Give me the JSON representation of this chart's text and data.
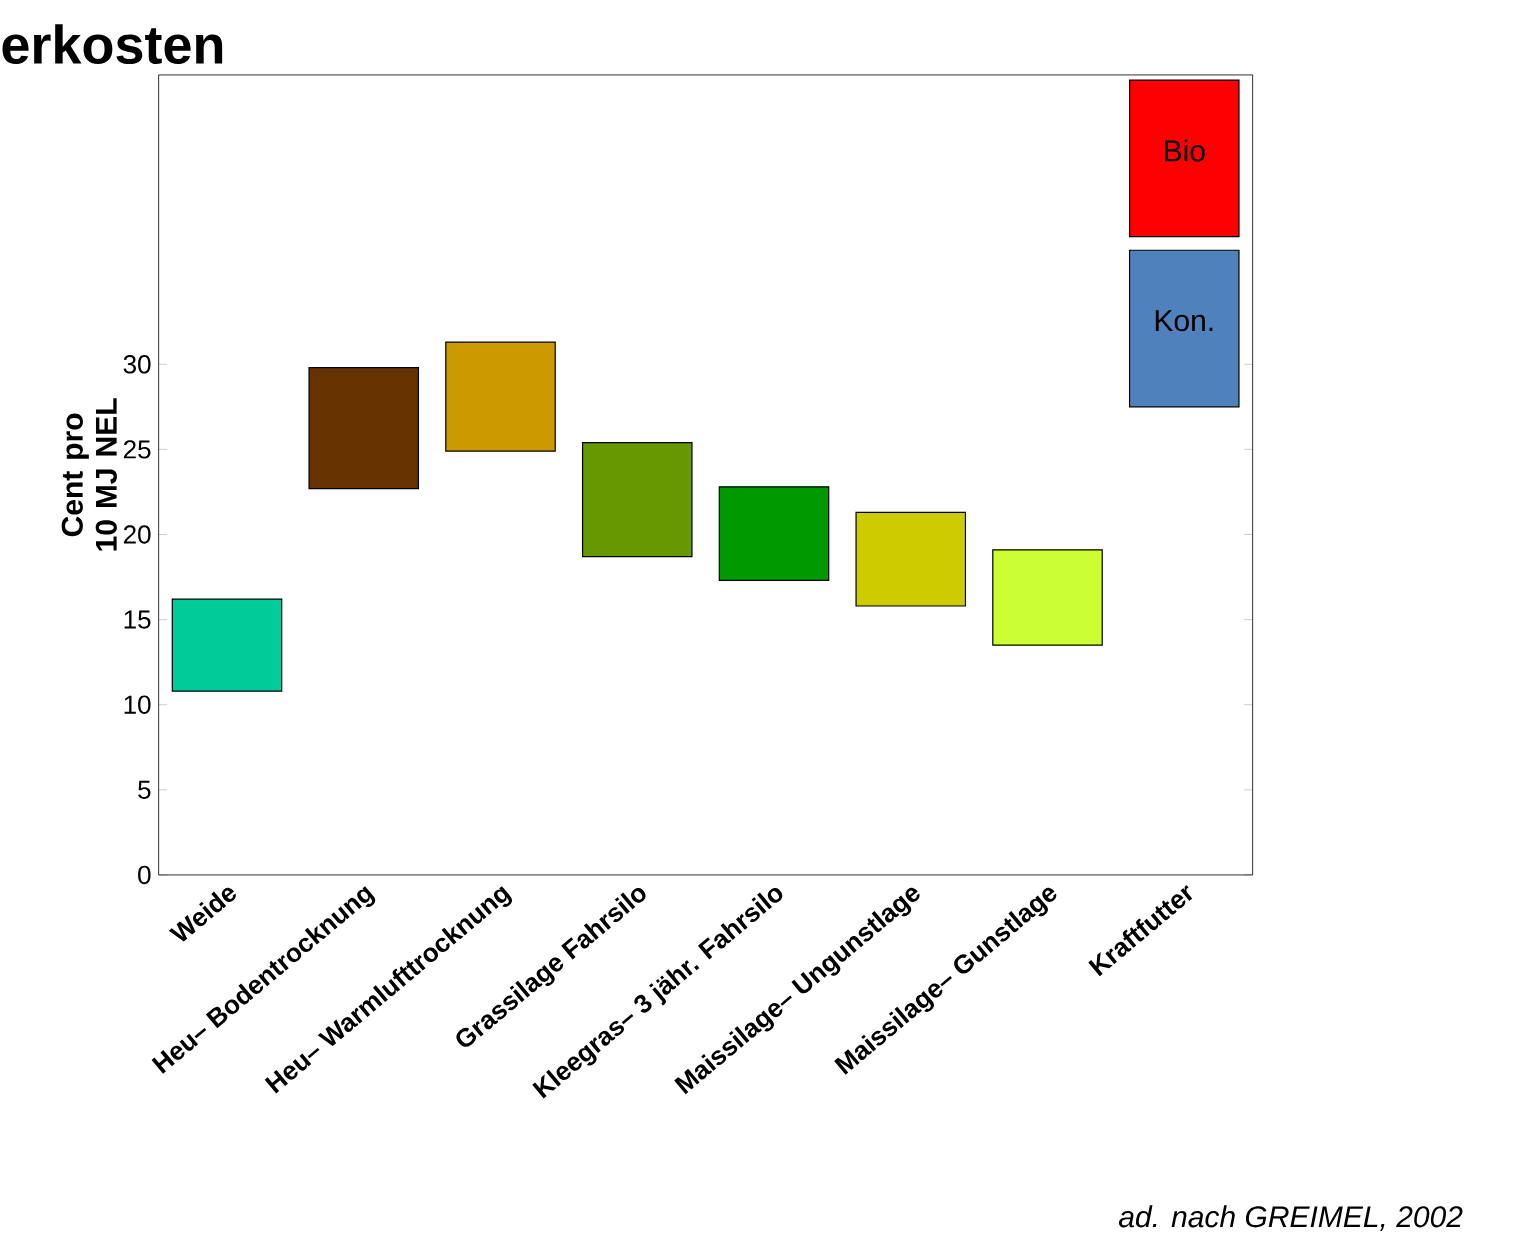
{
  "chart_data": {
    "type": "bar",
    "title": "erkosten",
    "ylabel": "Cent pro 10 MJ NEL",
    "categories": [
      "Weide",
      "Heu– Bodentrocknung",
      "Heu– Warmlufttrocknung",
      "Grassilage Fahrsilo",
      "Kleegras– 3 jähr. Fahrsilo",
      "Maissilage– Ungunstlage",
      "Maissilage– Gunstlage",
      "Kraftfutter"
    ],
    "series": [
      {
        "colors": [
          "#00cc99",
          "#663300",
          "#cc9900",
          "#669900",
          "#009900",
          "#cccc00",
          "#ccff33",
          null
        ],
        "values": [
          5.4,
          7.1,
          6.4,
          6.7,
          5.5,
          5.5,
          5.6,
          null
        ],
        "base": [
          10.8,
          22.7,
          24.9,
          18.7,
          17.3,
          15.8,
          13.5,
          null
        ]
      },
      {
        "name": "Kon.",
        "color": "#4f81bd",
        "values": [
          null,
          null,
          null,
          null,
          null,
          null,
          null,
          9.2
        ],
        "base": [
          null,
          null,
          null,
          null,
          null,
          null,
          null,
          27.5
        ]
      },
      {
        "name": "Bio",
        "color": "#ff0000",
        "values": [
          null,
          null,
          null,
          null,
          null,
          null,
          null,
          9.2
        ],
        "base": [
          null,
          null,
          null,
          null,
          null,
          null,
          null,
          37.5
        ]
      }
    ],
    "ylim": [
      0,
      47
    ],
    "yticks": [
      0,
      5,
      10,
      15,
      20,
      25,
      30
    ],
    "annotations": [
      "ad. nach GREIMEL, 2002"
    ]
  }
}
